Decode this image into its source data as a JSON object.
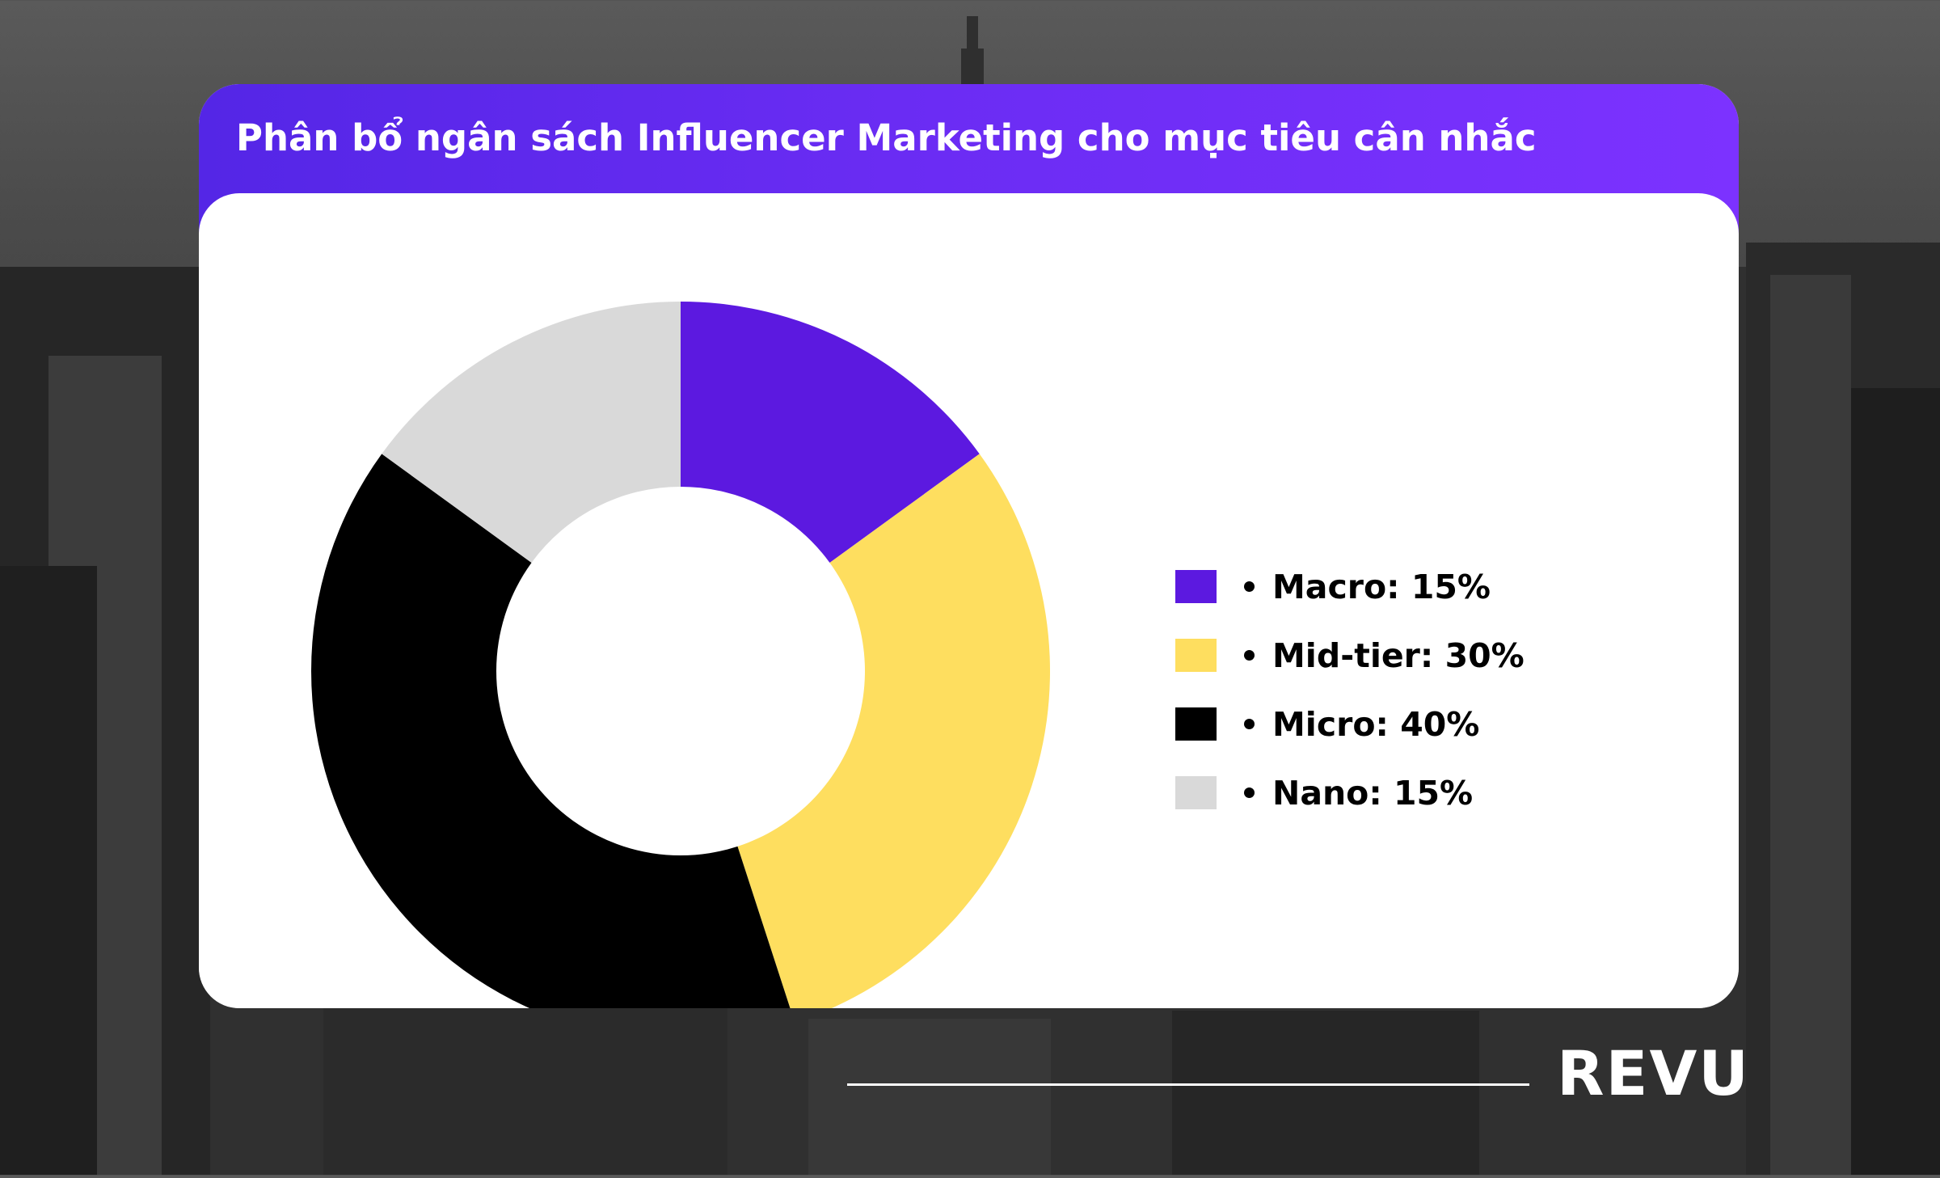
{
  "title": "Phân bổ ngân sách Influencer Marketing cho mục tiêu cân nhắc",
  "logo_text": "REVU",
  "colors": {
    "header_start": "#5426e6",
    "header_end": "#7c32ff",
    "card_background": "#ffffff"
  },
  "chart_data": {
    "type": "pie",
    "variant": "donut",
    "title": "",
    "categories": [
      "Macro",
      "Mid-tier",
      "Micro",
      "Nano"
    ],
    "values": [
      15,
      30,
      40,
      15
    ],
    "unit": "%",
    "colors": [
      "#5c19e0",
      "#fede5f",
      "#000000",
      "#d9d9d9"
    ],
    "legend": {
      "position": "right",
      "entries": [
        "Macro: 15%",
        "Mid-tier: 30%",
        "Micro: 40%",
        "Nano: 15%"
      ]
    }
  }
}
